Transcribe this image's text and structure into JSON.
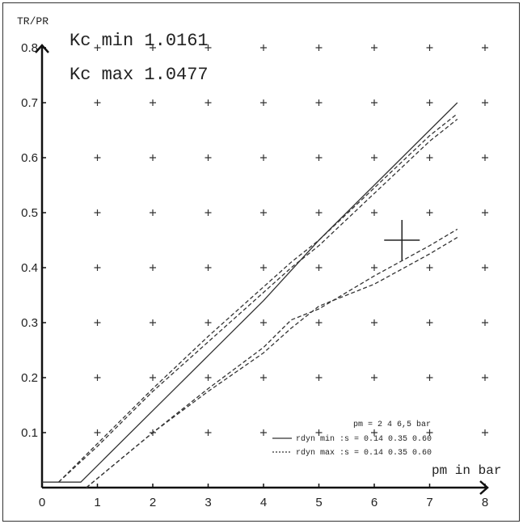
{
  "chart_data": {
    "type": "line",
    "ylabel": "TR/PR",
    "xlabel": "pm in bar",
    "xlim": [
      0,
      8
    ],
    "ylim": [
      0,
      0.8
    ],
    "x_ticks": [
      0,
      1,
      2,
      3,
      4,
      5,
      6,
      7,
      8
    ],
    "y_ticks": [
      0.1,
      0.2,
      0.3,
      0.4,
      0.5,
      0.6,
      0.7,
      0.8
    ],
    "x_tick_labels": [
      "0",
      "1",
      "2",
      "3",
      "4",
      "5",
      "6",
      "7",
      "8"
    ],
    "y_tick_labels": [
      "0.1",
      "0.2",
      "0.3",
      "0.4",
      "0.5",
      "0.6",
      "0.7",
      "0.8"
    ],
    "grid": "plus-markers",
    "annotations": {
      "kc_min": "Kc min 1.0161",
      "kc_max": "Kc max 1.0477"
    },
    "legend": {
      "placement": "bottom-right",
      "header": "pm =    2      4    6,5 bar",
      "rows": [
        {
          "label": "rdyn min :s = 0.14   0.35   0.60",
          "style": "solid"
        },
        {
          "label": "rdyn max :s = 0.14   0.35   0.60",
          "style": "dotted"
        }
      ]
    },
    "marker_cross": {
      "x": 6.5,
      "y": 0.45
    },
    "series": [
      {
        "style": "solid",
        "points": [
          [
            0,
            0.01
          ],
          [
            0.7,
            0.01
          ],
          [
            1.0,
            0.04
          ],
          [
            2.0,
            0.14
          ],
          [
            3.0,
            0.24
          ],
          [
            4.0,
            0.34
          ],
          [
            5.0,
            0.45
          ],
          [
            6.0,
            0.55
          ],
          [
            7.0,
            0.65
          ],
          [
            7.5,
            0.7
          ]
        ]
      },
      {
        "style": "dashed",
        "points": [
          [
            0.3,
            0.01
          ],
          [
            1.0,
            0.075
          ],
          [
            2.0,
            0.175
          ],
          [
            3.0,
            0.265
          ],
          [
            4.0,
            0.355
          ],
          [
            4.5,
            0.4
          ],
          [
            5.0,
            0.44
          ],
          [
            6.0,
            0.535
          ],
          [
            7.0,
            0.63
          ],
          [
            7.5,
            0.67
          ]
        ]
      },
      {
        "style": "dashed",
        "points": [
          [
            0.3,
            0.01
          ],
          [
            1.0,
            0.08
          ],
          [
            2.0,
            0.18
          ],
          [
            3.0,
            0.275
          ],
          [
            4.0,
            0.365
          ],
          [
            4.5,
            0.41
          ],
          [
            5.0,
            0.45
          ],
          [
            6.0,
            0.545
          ],
          [
            7.0,
            0.64
          ],
          [
            7.5,
            0.68
          ]
        ]
      },
      {
        "style": "dashed",
        "points": [
          [
            0.8,
            0.0
          ],
          [
            2.0,
            0.1
          ],
          [
            3.0,
            0.175
          ],
          [
            4.0,
            0.245
          ],
          [
            4.5,
            0.29
          ],
          [
            5.0,
            0.33
          ],
          [
            6.0,
            0.37
          ],
          [
            7.0,
            0.425
          ],
          [
            7.5,
            0.455
          ]
        ]
      },
      {
        "style": "dashed",
        "points": [
          [
            0.8,
            0.0
          ],
          [
            2.0,
            0.1
          ],
          [
            3.0,
            0.18
          ],
          [
            4.0,
            0.255
          ],
          [
            4.5,
            0.305
          ],
          [
            5.0,
            0.325
          ],
          [
            6.0,
            0.385
          ],
          [
            7.0,
            0.44
          ],
          [
            7.5,
            0.47
          ]
        ]
      }
    ]
  }
}
